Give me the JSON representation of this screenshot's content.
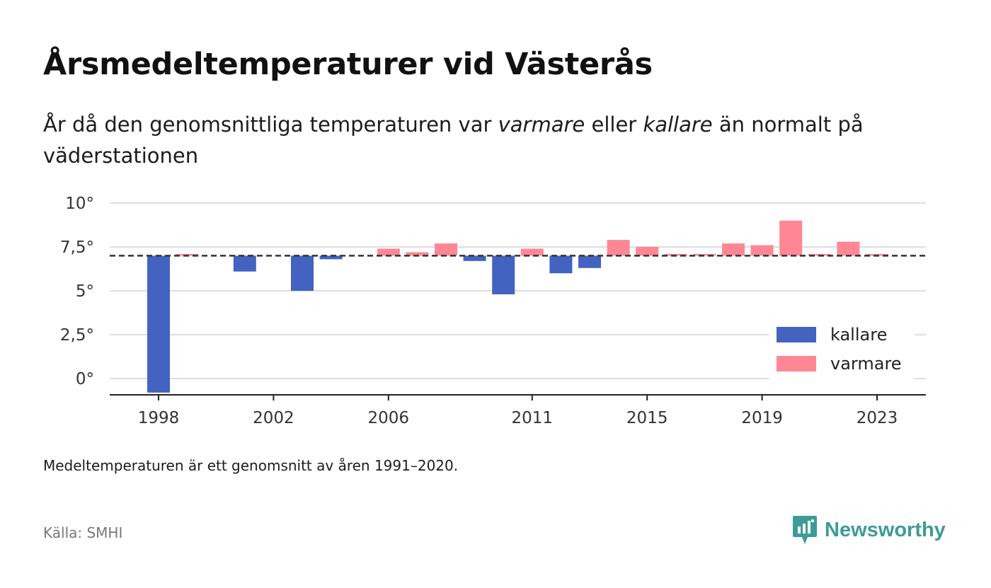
{
  "title": "Årsmedeltemperaturer vid Västerås",
  "subtitle": {
    "before": "År då den genomsnittliga temperaturen var ",
    "warm": "varmare",
    "middle": " eller ",
    "cold": "kallare",
    "after": " än normalt på väderstationen"
  },
  "note": "Medeltemperaturen är ett genomsnitt av åren 1991–2020.",
  "source": "Källa: SMHI",
  "brand": {
    "name": "Newsworthy",
    "icon": "newsworthy-logo-icon",
    "color": "#3e9b96"
  },
  "colors": {
    "cold": "#4263c0",
    "warm": "#ff8795",
    "grid": "#dddddd",
    "reference": "#333333"
  },
  "chart_data": {
    "type": "bar",
    "title": "Årsmedeltemperaturer vid Västerås",
    "reference": 7.0,
    "ylim": [
      -0.9,
      10
    ],
    "yticks": [
      0,
      2.5,
      5,
      7.5,
      10
    ],
    "ytick_labels": [
      "0°",
      "2,5°",
      "5°",
      "7,5°",
      "10°"
    ],
    "xticks": [
      1998,
      2002,
      2006,
      2011,
      2015,
      2019,
      2023
    ],
    "grid": true,
    "legend": {
      "position": "bottom-right",
      "entries": [
        {
          "key": "cold",
          "label": "kallare"
        },
        {
          "key": "warm",
          "label": "varmare"
        }
      ]
    },
    "years": [
      1998,
      1999,
      2000,
      2001,
      2002,
      2003,
      2004,
      2005,
      2006,
      2007,
      2008,
      2009,
      2010,
      2011,
      2012,
      2013,
      2014,
      2015,
      2016,
      2017,
      2018,
      2019,
      2020,
      2021,
      2022,
      2023
    ],
    "values": [
      -0.8,
      7.1,
      null,
      6.1,
      null,
      5.0,
      6.8,
      null,
      7.4,
      7.2,
      7.7,
      6.7,
      4.8,
      7.4,
      6.0,
      6.3,
      7.9,
      7.5,
      7.1,
      7.1,
      7.7,
      7.6,
      9.0,
      7.1,
      7.8,
      7.1
    ]
  }
}
